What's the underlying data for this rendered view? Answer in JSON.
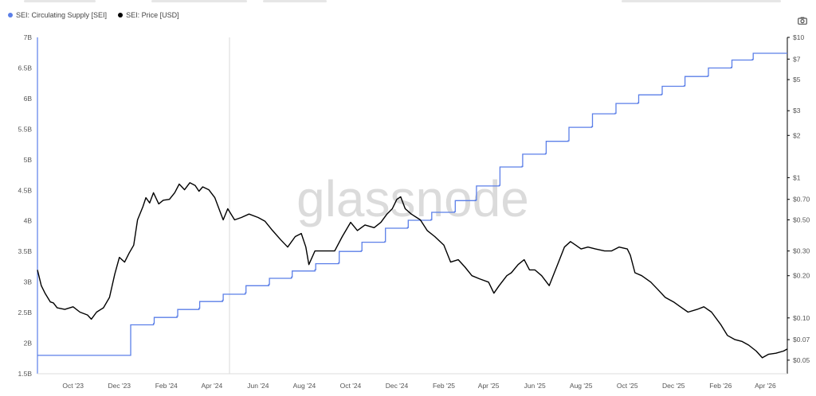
{
  "legend": [
    {
      "label": "SEI: Circulating Supply [SEI]",
      "color": "#5b7fe8"
    },
    {
      "label": "SEI: Price [USD]",
      "color": "#000000"
    }
  ],
  "watermark": "glassnode",
  "toolbar": {
    "camera_icon": "camera-icon"
  },
  "chart_data": {
    "type": "line",
    "x_tick_labels": [
      "Oct '23",
      "Dec '23",
      "Feb '24",
      "Apr '24",
      "Jun '24",
      "Aug '24",
      "Oct '24",
      "Dec '24",
      "Feb '25",
      "Apr '25",
      "Jun '25",
      "Aug '25",
      "Oct '25",
      "Dec '25",
      "Feb '26",
      "Apr '26"
    ],
    "x_range": [
      "2023-08-15",
      "2026-04-30"
    ],
    "left_axis": {
      "ticks": [
        "1.5B",
        "2B",
        "2.5B",
        "3B",
        "3.5B",
        "4B",
        "4.5B",
        "5B",
        "5.5B",
        "6B",
        "6.5B",
        "7B"
      ],
      "ylim": [
        1500000000,
        7000000000
      ]
    },
    "right_axis": {
      "scale": "log",
      "ticks": [
        "$0.05",
        "$0.07",
        "$0.10",
        "$0.20",
        "$0.30",
        "$0.50",
        "$0.70",
        "$1",
        "$2",
        "$3",
        "$5",
        "$7",
        "$10"
      ],
      "tick_values": [
        0.05,
        0.07,
        0.1,
        0.2,
        0.3,
        0.5,
        0.7,
        1,
        2,
        3,
        5,
        7,
        10
      ],
      "ylim": [
        0.04,
        10
      ]
    },
    "series": [
      {
        "name": "SEI: Circulating Supply [SEI]",
        "axis": "left",
        "color": "#5b7fe8",
        "step": true,
        "points": [
          [
            "2023-08-15",
            1800000000
          ],
          [
            "2023-12-15",
            1800000000
          ],
          [
            "2023-12-16",
            2300000000
          ],
          [
            "2024-01-15",
            2320000000
          ],
          [
            "2024-01-16",
            2420000000
          ],
          [
            "2024-02-15",
            2440000000
          ],
          [
            "2024-02-16",
            2550000000
          ],
          [
            "2024-03-15",
            2570000000
          ],
          [
            "2024-03-16",
            2680000000
          ],
          [
            "2024-04-15",
            2700000000
          ],
          [
            "2024-04-16",
            2800000000
          ],
          [
            "2024-05-15",
            2820000000
          ],
          [
            "2024-05-16",
            2940000000
          ],
          [
            "2024-06-15",
            2960000000
          ],
          [
            "2024-06-16",
            3060000000
          ],
          [
            "2024-07-15",
            3080000000
          ],
          [
            "2024-07-16",
            3180000000
          ],
          [
            "2024-08-15",
            3200000000
          ],
          [
            "2024-08-16",
            3300000000
          ],
          [
            "2024-09-15",
            3310000000
          ],
          [
            "2024-09-16",
            3500000000
          ],
          [
            "2024-10-15",
            3510000000
          ],
          [
            "2024-10-16",
            3650000000
          ],
          [
            "2024-11-15",
            3660000000
          ],
          [
            "2024-11-16",
            3880000000
          ],
          [
            "2024-12-15",
            3890000000
          ],
          [
            "2024-12-16",
            4010000000
          ],
          [
            "2025-01-15",
            4020000000
          ],
          [
            "2025-01-16",
            4140000000
          ],
          [
            "2025-02-15",
            4150000000
          ],
          [
            "2025-02-16",
            4330000000
          ],
          [
            "2025-03-15",
            4340000000
          ],
          [
            "2025-03-16",
            4570000000
          ],
          [
            "2025-04-15",
            4580000000
          ],
          [
            "2025-04-16",
            4880000000
          ],
          [
            "2025-05-15",
            4890000000
          ],
          [
            "2025-05-16",
            5090000000
          ],
          [
            "2025-06-15",
            5100000000
          ],
          [
            "2025-06-16",
            5300000000
          ],
          [
            "2025-07-15",
            5310000000
          ],
          [
            "2025-07-16",
            5530000000
          ],
          [
            "2025-08-15",
            5540000000
          ],
          [
            "2025-08-16",
            5750000000
          ],
          [
            "2025-09-15",
            5760000000
          ],
          [
            "2025-09-16",
            5920000000
          ],
          [
            "2025-10-15",
            5930000000
          ],
          [
            "2025-10-16",
            6060000000
          ],
          [
            "2025-11-15",
            6070000000
          ],
          [
            "2025-11-16",
            6200000000
          ],
          [
            "2025-12-15",
            6210000000
          ],
          [
            "2025-12-16",
            6360000000
          ],
          [
            "2026-01-15",
            6370000000
          ],
          [
            "2026-01-16",
            6500000000
          ],
          [
            "2026-02-15",
            6510000000
          ],
          [
            "2026-02-16",
            6630000000
          ],
          [
            "2026-03-15",
            6640000000
          ],
          [
            "2026-03-16",
            6740000000
          ],
          [
            "2026-04-30",
            6740000000
          ]
        ]
      },
      {
        "name": "SEI: Price [USD]",
        "axis": "right",
        "color": "#000000",
        "points": [
          [
            "2023-08-15",
            0.22
          ],
          [
            "2023-08-20",
            0.17
          ],
          [
            "2023-08-25",
            0.15
          ],
          [
            "2023-09-01",
            0.13
          ],
          [
            "2023-09-05",
            0.128
          ],
          [
            "2023-09-10",
            0.118
          ],
          [
            "2023-09-20",
            0.115
          ],
          [
            "2023-10-01",
            0.12
          ],
          [
            "2023-10-10",
            0.11
          ],
          [
            "2023-10-20",
            0.105
          ],
          [
            "2023-10-25",
            0.098
          ],
          [
            "2023-11-01",
            0.11
          ],
          [
            "2023-11-10",
            0.118
          ],
          [
            "2023-11-18",
            0.14
          ],
          [
            "2023-11-25",
            0.205
          ],
          [
            "2023-12-01",
            0.27
          ],
          [
            "2023-12-08",
            0.25
          ],
          [
            "2023-12-14",
            0.29
          ],
          [
            "2023-12-20",
            0.33
          ],
          [
            "2023-12-25",
            0.5
          ],
          [
            "2024-01-01",
            0.62
          ],
          [
            "2024-01-05",
            0.72
          ],
          [
            "2024-01-10",
            0.66
          ],
          [
            "2024-01-15",
            0.78
          ],
          [
            "2024-01-22",
            0.65
          ],
          [
            "2024-01-28",
            0.69
          ],
          [
            "2024-02-05",
            0.7
          ],
          [
            "2024-02-12",
            0.78
          ],
          [
            "2024-02-18",
            0.9
          ],
          [
            "2024-02-25",
            0.82
          ],
          [
            "2024-03-03",
            0.92
          ],
          [
            "2024-03-10",
            0.88
          ],
          [
            "2024-03-15",
            0.8
          ],
          [
            "2024-03-20",
            0.86
          ],
          [
            "2024-03-28",
            0.82
          ],
          [
            "2024-04-05",
            0.72
          ],
          [
            "2024-04-12",
            0.57
          ],
          [
            "2024-04-16",
            0.5
          ],
          [
            "2024-04-22",
            0.6
          ],
          [
            "2024-05-01",
            0.5
          ],
          [
            "2024-05-10",
            0.52
          ],
          [
            "2024-05-20",
            0.55
          ],
          [
            "2024-06-01",
            0.52
          ],
          [
            "2024-06-10",
            0.49
          ],
          [
            "2024-06-20",
            0.42
          ],
          [
            "2024-07-01",
            0.36
          ],
          [
            "2024-07-10",
            0.32
          ],
          [
            "2024-07-20",
            0.38
          ],
          [
            "2024-07-28",
            0.4
          ],
          [
            "2024-08-03",
            0.32
          ],
          [
            "2024-08-07",
            0.24
          ],
          [
            "2024-08-15",
            0.3
          ],
          [
            "2024-08-25",
            0.3
          ],
          [
            "2024-09-01",
            0.3
          ],
          [
            "2024-09-10",
            0.3
          ],
          [
            "2024-09-20",
            0.38
          ],
          [
            "2024-10-01",
            0.48
          ],
          [
            "2024-10-10",
            0.42
          ],
          [
            "2024-10-20",
            0.46
          ],
          [
            "2024-11-01",
            0.44
          ],
          [
            "2024-11-10",
            0.48
          ],
          [
            "2024-11-18",
            0.55
          ],
          [
            "2024-11-25",
            0.6
          ],
          [
            "2024-12-01",
            0.7
          ],
          [
            "2024-12-06",
            0.73
          ],
          [
            "2024-12-12",
            0.6
          ],
          [
            "2024-12-20",
            0.55
          ],
          [
            "2025-01-01",
            0.5
          ],
          [
            "2025-01-10",
            0.42
          ],
          [
            "2025-01-20",
            0.38
          ],
          [
            "2025-02-01",
            0.33
          ],
          [
            "2025-02-10",
            0.25
          ],
          [
            "2025-02-20",
            0.26
          ],
          [
            "2025-03-01",
            0.23
          ],
          [
            "2025-03-10",
            0.2
          ],
          [
            "2025-03-20",
            0.19
          ],
          [
            "2025-04-01",
            0.18
          ],
          [
            "2025-04-08",
            0.15
          ],
          [
            "2025-04-15",
            0.17
          ],
          [
            "2025-04-25",
            0.2
          ],
          [
            "2025-05-01",
            0.21
          ],
          [
            "2025-05-10",
            0.24
          ],
          [
            "2025-05-18",
            0.26
          ],
          [
            "2025-05-25",
            0.22
          ],
          [
            "2025-06-01",
            0.22
          ],
          [
            "2025-06-10",
            0.2
          ],
          [
            "2025-06-20",
            0.17
          ],
          [
            "2025-07-01",
            0.24
          ],
          [
            "2025-07-10",
            0.32
          ],
          [
            "2025-07-18",
            0.35
          ],
          [
            "2025-07-25",
            0.33
          ],
          [
            "2025-08-01",
            0.31
          ],
          [
            "2025-08-10",
            0.32
          ],
          [
            "2025-08-20",
            0.31
          ],
          [
            "2025-09-01",
            0.3
          ],
          [
            "2025-09-10",
            0.3
          ],
          [
            "2025-09-20",
            0.32
          ],
          [
            "2025-10-01",
            0.31
          ],
          [
            "2025-10-05",
            0.28
          ],
          [
            "2025-10-11",
            0.21
          ],
          [
            "2025-10-20",
            0.2
          ],
          [
            "2025-11-01",
            0.18
          ],
          [
            "2025-11-10",
            0.16
          ],
          [
            "2025-11-20",
            0.14
          ],
          [
            "2025-12-01",
            0.13
          ],
          [
            "2025-12-10",
            0.12
          ],
          [
            "2025-12-20",
            0.11
          ],
          [
            "2026-01-01",
            0.115
          ],
          [
            "2026-01-10",
            0.12
          ],
          [
            "2026-01-20",
            0.11
          ],
          [
            "2026-02-01",
            0.09
          ],
          [
            "2026-02-10",
            0.075
          ],
          [
            "2026-02-20",
            0.07
          ],
          [
            "2026-03-01",
            0.068
          ],
          [
            "2026-03-10",
            0.064
          ],
          [
            "2026-03-20",
            0.058
          ],
          [
            "2026-03-28",
            0.052
          ],
          [
            "2026-04-05",
            0.055
          ],
          [
            "2026-04-15",
            0.056
          ],
          [
            "2026-04-25",
            0.058
          ],
          [
            "2026-04-30",
            0.06
          ]
        ]
      }
    ]
  }
}
